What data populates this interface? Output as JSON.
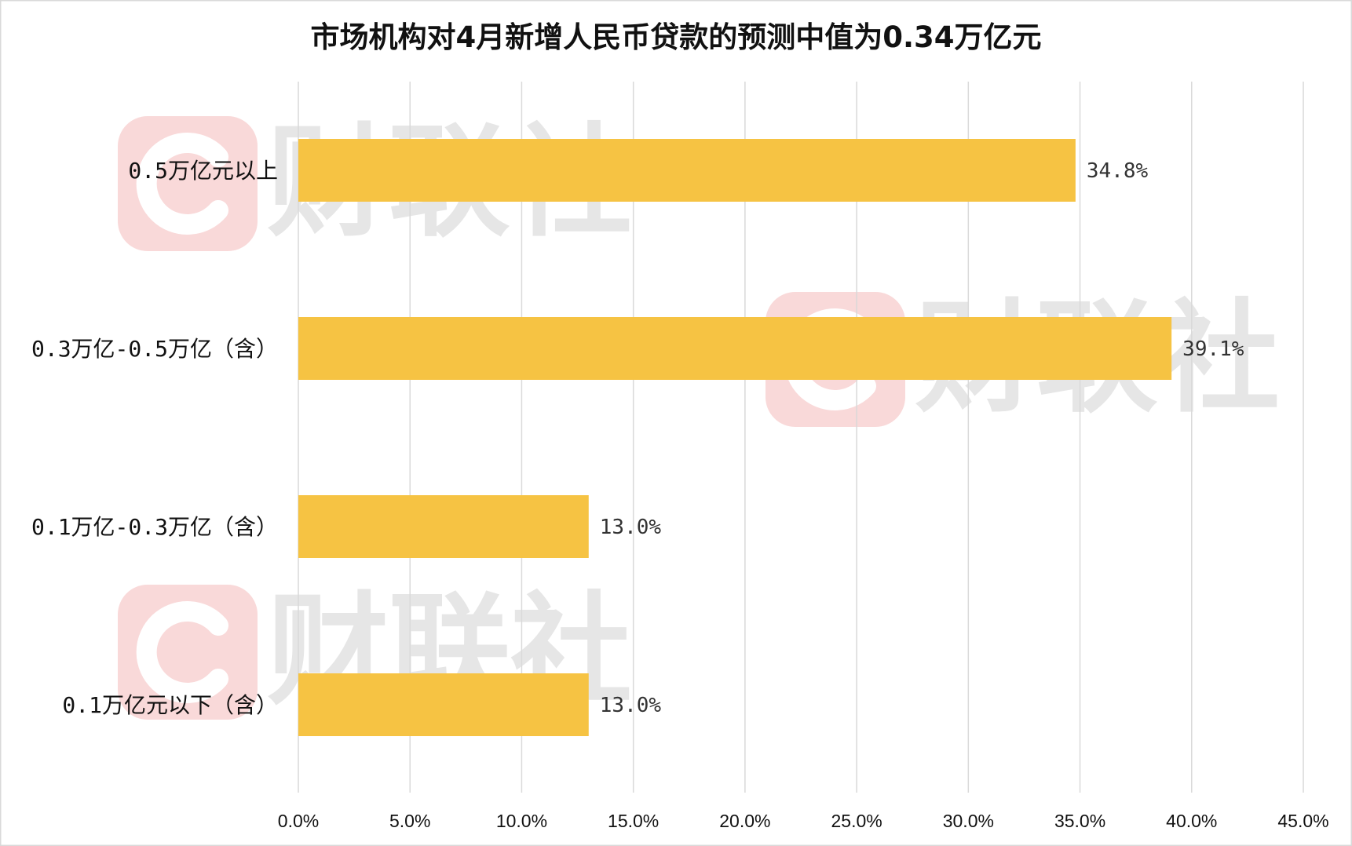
{
  "chart_data": {
    "type": "bar",
    "orientation": "horizontal",
    "title": "市场机构对4月新增人民币贷款的预测中值为0.34万亿元",
    "categories": [
      "0.5万亿元以上",
      "0.3万亿-0.5万亿（含）",
      "0.1万亿-0.3万亿（含）",
      "0.1万亿元以下（含）"
    ],
    "values": [
      34.8,
      39.1,
      13.0,
      13.0
    ],
    "value_labels": [
      "34.8%",
      "39.1%",
      "13.0%",
      "13.0%"
    ],
    "x_ticks": [
      "0.0%",
      "5.0%",
      "10.0%",
      "15.0%",
      "20.0%",
      "25.0%",
      "30.0%",
      "35.0%",
      "40.0%",
      "45.0%"
    ],
    "xlim": [
      0,
      45
    ],
    "grid": true,
    "bar_color": "#F6C343",
    "grid_color": "#d9d9d9"
  },
  "watermark": {
    "text": "财联社",
    "icon_color": "#f9d9d9",
    "text_color": "#e6e6e6"
  }
}
